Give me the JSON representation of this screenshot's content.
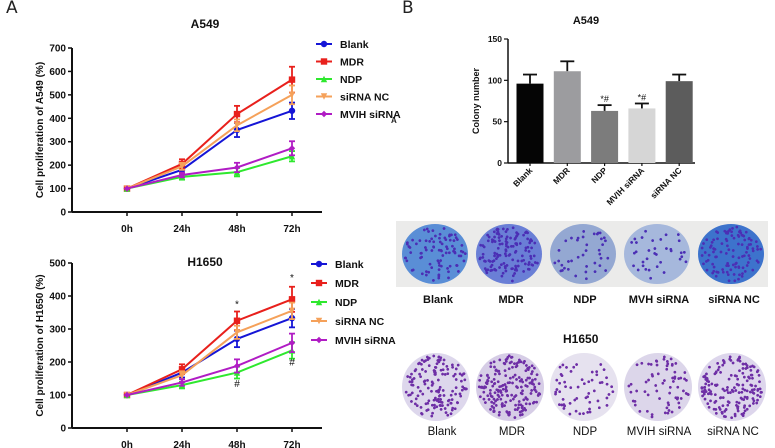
{
  "panels": {
    "a_label": "A",
    "b_label": "B",
    "stray_label": "A"
  },
  "chart_data": [
    {
      "id": "a549_line",
      "type": "line",
      "title": "A549",
      "xlabel": "",
      "ylabel": "Cell proliferation of A549 (%)",
      "categories": [
        "0h",
        "24h",
        "48h",
        "72h"
      ],
      "ylim": [
        0,
        700
      ],
      "yticks": [
        0,
        100,
        200,
        300,
        400,
        500,
        600,
        700
      ],
      "legend_position": "right",
      "series": [
        {
          "name": "Blank",
          "color": "#1515d6",
          "marker": "circle",
          "values": [
            100,
            180,
            350,
            432
          ],
          "errors": [
            10,
            15,
            30,
            35
          ]
        },
        {
          "name": "MDR",
          "color": "#e8201c",
          "marker": "square",
          "values": [
            100,
            205,
            418,
            565
          ],
          "errors": [
            10,
            20,
            35,
            55
          ]
        },
        {
          "name": "NDP",
          "color": "#2ee82e",
          "marker": "triangle-up",
          "values": [
            100,
            150,
            170,
            238
          ],
          "errors": [
            8,
            12,
            18,
            22
          ]
        },
        {
          "name": "siRNA NC",
          "color": "#f5a15a",
          "marker": "triangle-down",
          "values": [
            100,
            195,
            370,
            500
          ],
          "errors": [
            8,
            15,
            25,
            40
          ]
        },
        {
          "name": "MVIH siRNA",
          "color": "#b01cc4",
          "marker": "diamond",
          "values": [
            100,
            158,
            190,
            272
          ],
          "errors": [
            8,
            10,
            20,
            30
          ]
        }
      ],
      "annotations": []
    },
    {
      "id": "h1650_line",
      "type": "line",
      "title": "H1650",
      "xlabel": "",
      "ylabel": "Cell proliferation of H1650 (%)",
      "categories": [
        "0h",
        "24h",
        "48h",
        "72h"
      ],
      "ylim": [
        0,
        500
      ],
      "yticks": [
        0,
        100,
        200,
        300,
        400,
        500
      ],
      "legend_position": "right",
      "series": [
        {
          "name": "Blank",
          "color": "#1515d6",
          "marker": "circle",
          "values": [
            100,
            168,
            270,
            333
          ],
          "errors": [
            12,
            15,
            25,
            28
          ]
        },
        {
          "name": "MDR",
          "color": "#e8201c",
          "marker": "square",
          "values": [
            100,
            178,
            325,
            390
          ],
          "errors": [
            10,
            15,
            28,
            38
          ]
        },
        {
          "name": "NDP",
          "color": "#2ee82e",
          "marker": "triangle-up",
          "values": [
            100,
            130,
            168,
            235
          ],
          "errors": [
            8,
            10,
            18,
            25
          ]
        },
        {
          "name": "siRNA NC",
          "color": "#f5a15a",
          "marker": "triangle-down",
          "values": [
            100,
            160,
            290,
            355
          ],
          "errors": [
            8,
            12,
            20,
            25
          ]
        },
        {
          "name": "MVIH siRNA",
          "color": "#b01cc4",
          "marker": "diamond",
          "values": [
            100,
            138,
            188,
            258
          ],
          "errors": [
            8,
            10,
            20,
            28
          ]
        }
      ],
      "annotations": [
        {
          "text": "*",
          "x": "48h",
          "y": 365
        },
        {
          "text": "*",
          "x": "72h",
          "y": 445
        },
        {
          "text": "#",
          "x": "48h",
          "y": 125
        },
        {
          "text": "#",
          "x": "72h",
          "y": 190
        }
      ]
    },
    {
      "id": "a549_colony_bar",
      "type": "bar",
      "title": "A549",
      "xlabel": "",
      "ylabel": "Colony number",
      "categories": [
        "Blank",
        "MDR",
        "NDP",
        "MVIH siRNA",
        "siRNA NC"
      ],
      "values": [
        96,
        111,
        63,
        66,
        99
      ],
      "errors": [
        11,
        12,
        7,
        6,
        8
      ],
      "colors": [
        "#050505",
        "#9c9c9f",
        "#7c7c7c",
        "#d6d6d6",
        "#5c5c5c"
      ],
      "ylim": [
        0,
        150
      ],
      "yticks": [
        0,
        50,
        100,
        150
      ],
      "annotations": [
        {
          "text": "*#",
          "category": "NDP"
        },
        {
          "text": "*#",
          "category": "MVIH siRNA"
        }
      ]
    }
  ],
  "colony_images": {
    "a549": {
      "title": "",
      "labels": [
        "Blank",
        "MDR",
        "NDP",
        "MVH siRNA",
        "siRNA NC"
      ],
      "plate_colors": [
        "#5a8ed6",
        "#6a7fd6",
        "#94a8d2",
        "#a6b8dc",
        "#3d73cc"
      ],
      "dot_color": "#4b2fb5"
    },
    "h1650": {
      "title": "H1650",
      "labels": [
        "Blank",
        "MDR",
        "NDP",
        "MVIH siRNA",
        "siRNA NC"
      ],
      "plate_colors": [
        "#ddd7ec",
        "#d6cde6",
        "#e6e2ef",
        "#dcd6ea",
        "#ddd6ec"
      ],
      "dot_color": "#6e2fa6"
    }
  }
}
